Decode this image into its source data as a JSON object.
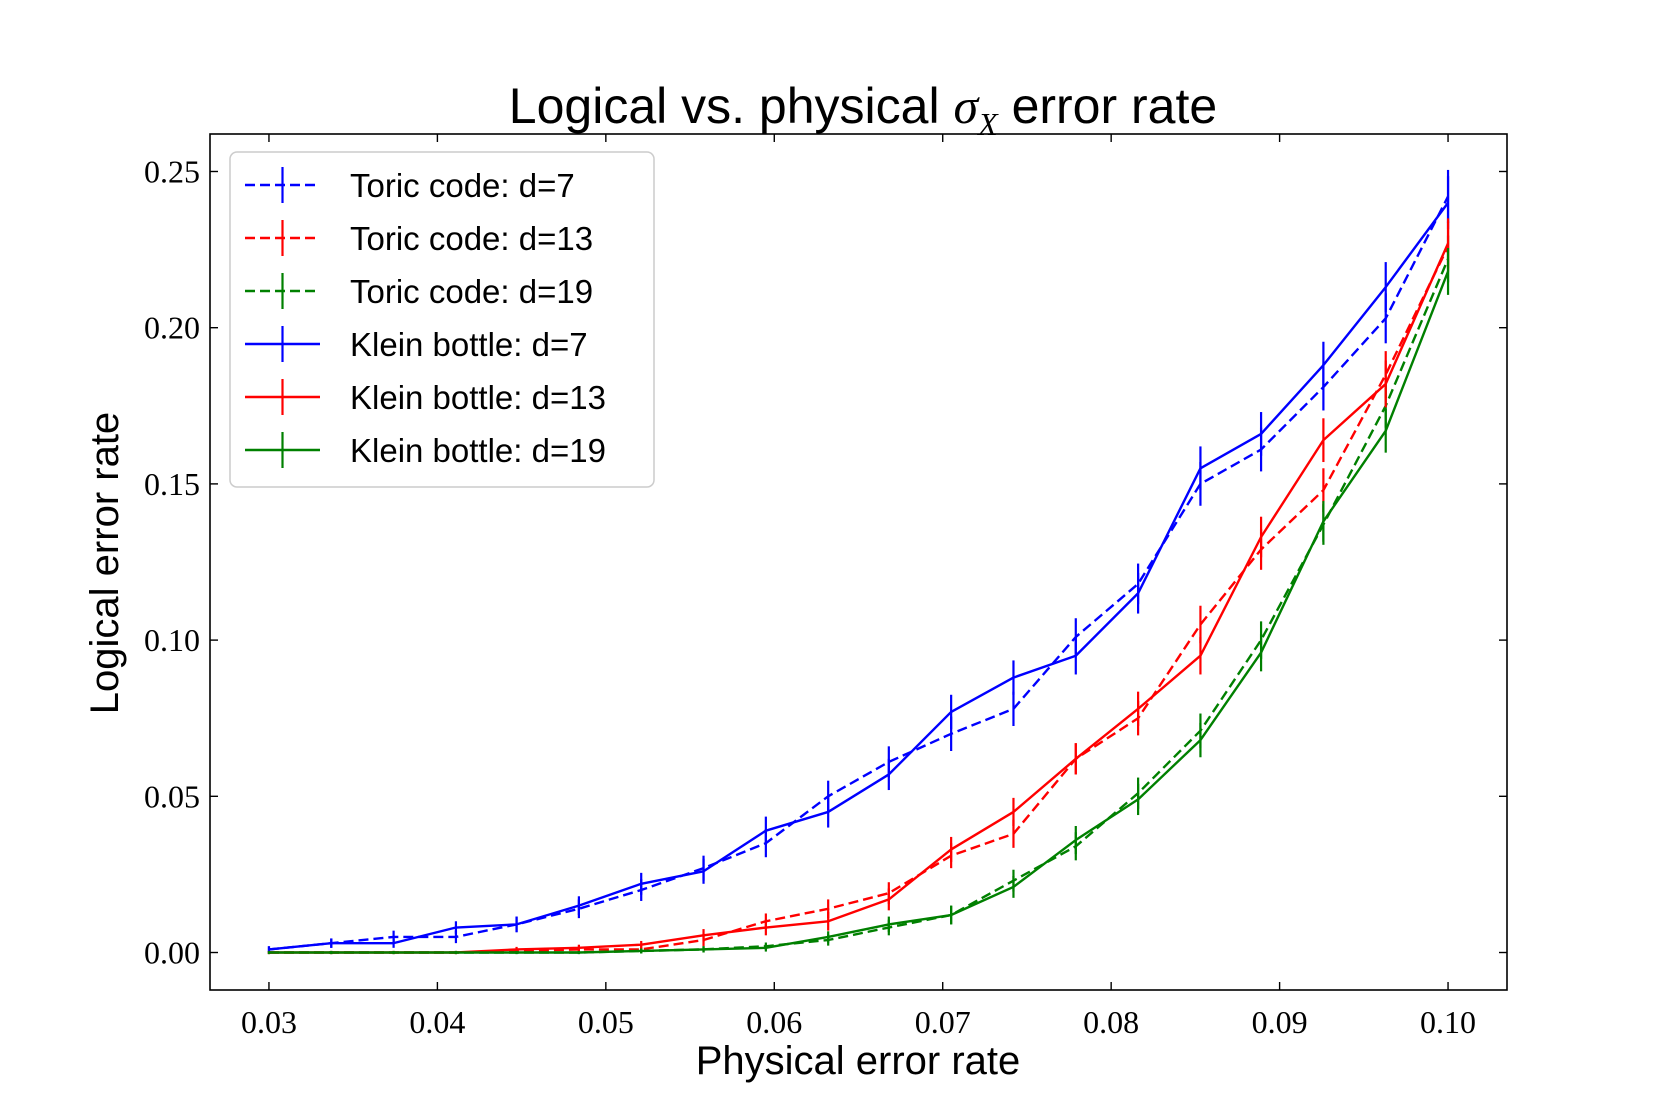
{
  "chart_data": {
    "type": "line",
    "title": "Logical vs. physical σX error rate",
    "title_parts": {
      "prefix": "Logical vs. physical ",
      "symbol": "σ",
      "subscript": "X",
      "suffix": " error rate"
    },
    "xlabel": "Physical error rate",
    "ylabel": "Logical error rate",
    "xlim": [
      0.0265,
      0.1035
    ],
    "ylim": [
      -0.012,
      0.262
    ],
    "xticks": [
      0.03,
      0.04,
      0.05,
      0.06,
      0.07,
      0.08,
      0.09,
      0.1
    ],
    "xtick_labels": [
      "0.03",
      "0.04",
      "0.05",
      "0.06",
      "0.07",
      "0.08",
      "0.09",
      "0.10"
    ],
    "yticks": [
      0.0,
      0.05,
      0.1,
      0.15,
      0.2,
      0.25
    ],
    "ytick_labels": [
      "0.00",
      "0.05",
      "0.10",
      "0.15",
      "0.20",
      "0.25"
    ],
    "legend_position": "upper-left",
    "x": [
      0.03,
      0.0337,
      0.0374,
      0.0411,
      0.0447,
      0.0484,
      0.0521,
      0.0558,
      0.0595,
      0.0632,
      0.0668,
      0.0705,
      0.0742,
      0.0779,
      0.0816,
      0.0853,
      0.0889,
      0.0926,
      0.0963,
      0.1
    ],
    "series": [
      {
        "name": "Toric code: d=7",
        "color": "#0000ff",
        "dash": "dashed",
        "values": [
          0.001,
          0.003,
          0.005,
          0.005,
          0.009,
          0.014,
          0.02,
          0.027,
          0.035,
          0.05,
          0.061,
          0.07,
          0.078,
          0.101,
          0.118,
          0.15,
          0.161,
          0.181,
          0.203,
          0.242
        ],
        "errors": [
          0.001,
          0.0015,
          0.002,
          0.002,
          0.0025,
          0.003,
          0.0035,
          0.004,
          0.0045,
          0.005,
          0.005,
          0.0055,
          0.0055,
          0.006,
          0.0065,
          0.007,
          0.007,
          0.0075,
          0.008,
          0.0085
        ]
      },
      {
        "name": "Toric code: d=13",
        "color": "#ff0000",
        "dash": "dashed",
        "values": [
          0.0,
          0.0,
          0.0,
          0.0,
          0.0005,
          0.001,
          0.001,
          0.004,
          0.01,
          0.014,
          0.019,
          0.031,
          0.038,
          0.062,
          0.075,
          0.105,
          0.129,
          0.148,
          0.185,
          0.226
        ],
        "errors": [
          0.0005,
          0.0005,
          0.0005,
          0.0005,
          0.0008,
          0.001,
          0.001,
          0.002,
          0.0025,
          0.003,
          0.0035,
          0.004,
          0.0045,
          0.005,
          0.0055,
          0.006,
          0.0065,
          0.007,
          0.0075,
          0.008
        ]
      },
      {
        "name": "Toric code: d=19",
        "color": "#008000",
        "dash": "dashed",
        "values": [
          0.0,
          0.0,
          0.0,
          0.0,
          0.0,
          0.0,
          0.0005,
          0.001,
          0.002,
          0.004,
          0.008,
          0.012,
          0.023,
          0.034,
          0.051,
          0.071,
          0.1,
          0.137,
          0.175,
          0.222
        ],
        "errors": [
          0.0005,
          0.0005,
          0.0005,
          0.0005,
          0.0005,
          0.0005,
          0.0008,
          0.001,
          0.0012,
          0.0018,
          0.0025,
          0.003,
          0.0035,
          0.0045,
          0.005,
          0.0055,
          0.006,
          0.0065,
          0.007,
          0.0075
        ]
      },
      {
        "name": "Klein bottle: d=7",
        "color": "#0000ff",
        "dash": "solid",
        "values": [
          0.001,
          0.003,
          0.003,
          0.008,
          0.009,
          0.015,
          0.022,
          0.026,
          0.039,
          0.045,
          0.057,
          0.077,
          0.088,
          0.095,
          0.115,
          0.155,
          0.166,
          0.188,
          0.213,
          0.24
        ],
        "errors": [
          0.001,
          0.0015,
          0.0015,
          0.002,
          0.0025,
          0.003,
          0.0035,
          0.004,
          0.0045,
          0.005,
          0.005,
          0.0055,
          0.0055,
          0.006,
          0.0065,
          0.007,
          0.007,
          0.0075,
          0.008,
          0.0085
        ]
      },
      {
        "name": "Klein bottle: d=13",
        "color": "#ff0000",
        "dash": "solid",
        "values": [
          0.0,
          0.0,
          0.0,
          0.0,
          0.001,
          0.0015,
          0.0025,
          0.0055,
          0.008,
          0.01,
          0.017,
          0.033,
          0.045,
          0.062,
          0.078,
          0.095,
          0.133,
          0.164,
          0.182,
          0.227
        ],
        "errors": [
          0.0005,
          0.0005,
          0.0005,
          0.0005,
          0.0008,
          0.001,
          0.0012,
          0.002,
          0.0025,
          0.003,
          0.0035,
          0.004,
          0.0045,
          0.005,
          0.0055,
          0.006,
          0.0065,
          0.007,
          0.0075,
          0.008
        ]
      },
      {
        "name": "Klein bottle: d=19",
        "color": "#008000",
        "dash": "solid",
        "values": [
          0.0,
          0.0,
          0.0,
          0.0,
          0.0,
          0.0,
          0.0005,
          0.001,
          0.0015,
          0.005,
          0.009,
          0.012,
          0.021,
          0.036,
          0.049,
          0.068,
          0.096,
          0.138,
          0.167,
          0.218
        ],
        "errors": [
          0.0005,
          0.0005,
          0.0005,
          0.0005,
          0.0005,
          0.0005,
          0.0008,
          0.001,
          0.0012,
          0.0018,
          0.0025,
          0.003,
          0.0035,
          0.0045,
          0.005,
          0.0055,
          0.006,
          0.0065,
          0.007,
          0.0075
        ]
      }
    ]
  }
}
